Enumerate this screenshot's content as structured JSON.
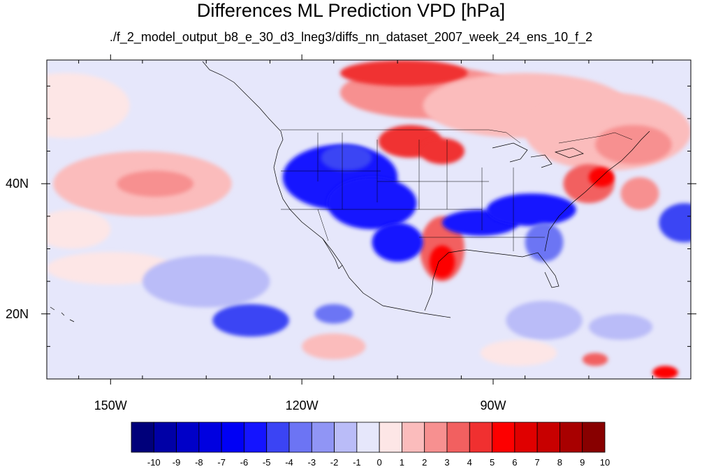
{
  "title": "Differences ML Prediction VPD [hPa]",
  "subtitle": "./f_2_model_output_b8_e_30_d3_lneg3/diffs_nn_dataset_2007_week_24_ens_10_f_2",
  "chart_data": {
    "type": "heatmap",
    "projection": "cylindrical-equidistant",
    "lon_range": [
      -160,
      -59
    ],
    "lat_range": [
      10,
      59
    ],
    "lat_ticks": [
      {
        "value": 20,
        "label": "20N"
      },
      {
        "value": 40,
        "label": "40N"
      }
    ],
    "lon_ticks": [
      {
        "value": -150,
        "label": "150W"
      },
      {
        "value": -120,
        "label": "120W"
      },
      {
        "value": -90,
        "label": "90W"
      }
    ],
    "colorbar": {
      "levels": [
        -10,
        -9,
        -8,
        -7,
        -6,
        -5,
        -4,
        -3,
        -2,
        -1,
        0,
        1,
        2,
        3,
        4,
        5,
        6,
        7,
        8,
        9,
        10
      ],
      "labels": [
        "-10",
        "-9",
        "-8",
        "-7",
        "-6",
        "-5",
        "-4",
        "-3",
        "-2",
        "-1",
        "0",
        "1",
        "2",
        "3",
        "4",
        "5",
        "6",
        "7",
        "8",
        "9",
        "10"
      ],
      "colors": [
        "#00007a",
        "#0000a6",
        "#0000c8",
        "#0000e0",
        "#0000f5",
        "#1414ff",
        "#3b44f4",
        "#6c74f4",
        "#9095f5",
        "#babcf8",
        "#e6e7fb",
        "#fde6e6",
        "#fbbcbc",
        "#f79090",
        "#f26060",
        "#f03030",
        "#fd0000",
        "#e00000",
        "#c80000",
        "#a80000",
        "#880000"
      ]
    },
    "field_regions": [
      {
        "lon": -157,
        "lat": 52,
        "rlon": 10,
        "rlat": 5,
        "value": 1
      },
      {
        "lon": -145,
        "lat": 40,
        "rlon": 14,
        "rlat": 5,
        "value": 2
      },
      {
        "lon": -143,
        "lat": 40,
        "rlon": 6,
        "rlat": 2,
        "value": 3
      },
      {
        "lon": -156,
        "lat": 33,
        "rlon": 6,
        "rlat": 3,
        "value": 1
      },
      {
        "lon": -150,
        "lat": 27,
        "rlon": 10,
        "rlat": 2.5,
        "value": 1
      },
      {
        "lon": -135,
        "lat": 25,
        "rlon": 10,
        "rlat": 4,
        "value": -1
      },
      {
        "lon": -115,
        "lat": 15,
        "rlon": 5,
        "rlat": 2,
        "value": 2
      },
      {
        "lon": -100,
        "lat": 54,
        "rlon": 14,
        "rlat": 4,
        "value": 3
      },
      {
        "lon": -104,
        "lat": 57,
        "rlon": 10,
        "rlat": 2,
        "value": 5
      },
      {
        "lon": -85,
        "lat": 52,
        "rlon": 16,
        "rlat": 5,
        "value": 2
      },
      {
        "lon": -72,
        "lat": 48,
        "rlon": 13,
        "rlat": 6,
        "value": 2
      },
      {
        "lon": -68,
        "lat": 46,
        "rlon": 6,
        "rlat": 3,
        "value": 3
      },
      {
        "lon": -103,
        "lat": 46.5,
        "rlon": 5,
        "rlat": 2.5,
        "value": 5
      },
      {
        "lon": -98,
        "lat": 45,
        "rlon": 3.5,
        "rlat": 2,
        "value": 5
      },
      {
        "lon": -75,
        "lat": 40,
        "rlon": 4,
        "rlat": 3,
        "value": 4
      },
      {
        "lon": -73,
        "lat": 41,
        "rlon": 2,
        "rlat": 1.5,
        "value": 6
      },
      {
        "lon": -67,
        "lat": 38.5,
        "rlon": 3,
        "rlat": 2.5,
        "value": 3
      },
      {
        "lon": -98,
        "lat": 30,
        "rlon": 3.5,
        "rlat": 5,
        "value": 4
      },
      {
        "lon": -98,
        "lat": 28,
        "rlon": 2,
        "rlat": 2.5,
        "value": 6
      },
      {
        "lon": -114,
        "lat": 41,
        "rlon": 9,
        "rlat": 5,
        "value": -5
      },
      {
        "lon": -109,
        "lat": 37,
        "rlon": 7,
        "rlat": 4,
        "value": -5
      },
      {
        "lon": -105,
        "lat": 31,
        "rlon": 4,
        "rlat": 3,
        "value": -5
      },
      {
        "lon": -113,
        "lat": 44,
        "rlon": 4,
        "rlat": 2,
        "value": -4
      },
      {
        "lon": -92,
        "lat": 34,
        "rlon": 6,
        "rlat": 2,
        "value": -5
      },
      {
        "lon": -84,
        "lat": 36,
        "rlon": 7,
        "rlat": 2.5,
        "value": -5
      },
      {
        "lon": -82,
        "lat": 31,
        "rlon": 3,
        "rlat": 3,
        "value": -3
      },
      {
        "lon": -60,
        "lat": 34,
        "rlon": 4,
        "rlat": 3,
        "value": -4
      },
      {
        "lon": -128,
        "lat": 19,
        "rlon": 6,
        "rlat": 2.5,
        "value": -4
      },
      {
        "lon": -115,
        "lat": 20,
        "rlon": 3,
        "rlat": 1.5,
        "value": -3
      },
      {
        "lon": -82,
        "lat": 19,
        "rlon": 6,
        "rlat": 3,
        "value": -1
      },
      {
        "lon": -70,
        "lat": 18,
        "rlon": 5,
        "rlat": 2,
        "value": -1
      },
      {
        "lon": -86,
        "lat": 14,
        "rlon": 6,
        "rlat": 2,
        "value": 1
      },
      {
        "lon": -74,
        "lat": 13,
        "rlon": 2,
        "rlat": 1,
        "value": 4
      },
      {
        "lon": -63,
        "lat": 11,
        "rlon": 2,
        "rlat": 1,
        "value": 6
      }
    ]
  }
}
